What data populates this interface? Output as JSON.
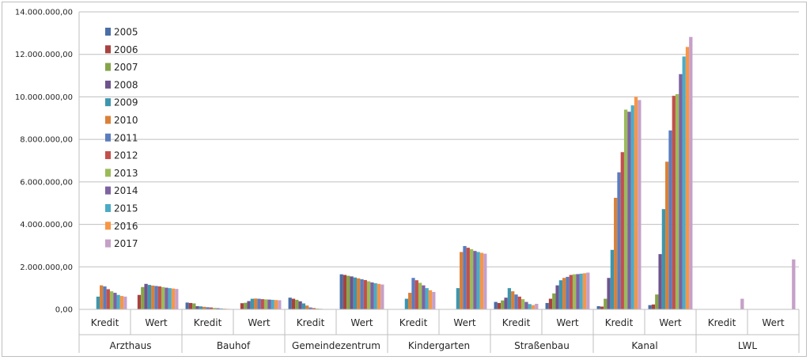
{
  "chart_data": {
    "type": "bar",
    "ylim": [
      0,
      14000000
    ],
    "y_ticks": [
      0,
      2000000,
      4000000,
      6000000,
      8000000,
      10000000,
      12000000,
      14000000
    ],
    "y_tick_labels": [
      "0,00",
      "2.000.000,00",
      "4.000.000,00",
      "6.000.000,00",
      "8.000.000,00",
      "10.000.000,00",
      "12.000.000,00",
      "14.000.000,00"
    ],
    "grid": true,
    "legend_placement": "top-left",
    "groups": [
      {
        "name": "Arzthaus",
        "subs": [
          "Kredit",
          "Wert"
        ]
      },
      {
        "name": "Bauhof",
        "subs": [
          "Kredit",
          "Wert"
        ]
      },
      {
        "name": "Gemeindezentrum",
        "subs": [
          "Kredit",
          "Wert"
        ]
      },
      {
        "name": "Kindergarten",
        "subs": [
          "Kredit",
          "Wert"
        ]
      },
      {
        "name": "Straßenbau",
        "subs": [
          "Kredit",
          "Wert"
        ]
      },
      {
        "name": "Kanal",
        "subs": [
          "Kredit",
          "Wert"
        ]
      },
      {
        "name": "LWL",
        "subs": [
          "Kredit",
          "Wert"
        ]
      }
    ],
    "series": [
      {
        "name": "2005",
        "color": "#4a6ea6",
        "values": [
          0,
          0,
          320000,
          0,
          550000,
          1650000,
          0,
          0,
          350000,
          300000,
          150000,
          200000,
          0,
          0
        ]
      },
      {
        "name": "2006",
        "color": "#a8423f",
        "values": [
          0,
          680000,
          300000,
          290000,
          500000,
          1620000,
          0,
          0,
          300000,
          500000,
          130000,
          230000,
          0,
          0
        ]
      },
      {
        "name": "2007",
        "color": "#86a44a",
        "values": [
          0,
          1050000,
          280000,
          310000,
          450000,
          1580000,
          0,
          0,
          420000,
          750000,
          500000,
          700000,
          0,
          0
        ]
      },
      {
        "name": "2008",
        "color": "#6e548d",
        "values": [
          0,
          1200000,
          150000,
          390000,
          380000,
          1550000,
          0,
          0,
          550000,
          1130000,
          1480000,
          2600000,
          0,
          0
        ]
      },
      {
        "name": "2009",
        "color": "#3d96ae",
        "values": [
          600000,
          1150000,
          140000,
          500000,
          280000,
          1500000,
          500000,
          1000000,
          1000000,
          1370000,
          2800000,
          4720000,
          0,
          0
        ]
      },
      {
        "name": "2010",
        "color": "#da8137",
        "values": [
          1130000,
          1120000,
          120000,
          510000,
          180000,
          1460000,
          780000,
          2700000,
          850000,
          1480000,
          5250000,
          6950000,
          0,
          0
        ]
      },
      {
        "name": "2011",
        "color": "#5b7dbf",
        "values": [
          1080000,
          1100000,
          100000,
          500000,
          90000,
          1420000,
          1480000,
          2980000,
          700000,
          1530000,
          6450000,
          8420000,
          0,
          0
        ]
      },
      {
        "name": "2012",
        "color": "#c2504d",
        "values": [
          950000,
          1080000,
          90000,
          480000,
          60000,
          1380000,
          1370000,
          2900000,
          600000,
          1620000,
          7400000,
          10050000,
          0,
          0
        ]
      },
      {
        "name": "2013",
        "color": "#9bbb59",
        "values": [
          850000,
          1050000,
          70000,
          470000,
          40000,
          1320000,
          1250000,
          2830000,
          480000,
          1650000,
          9400000,
          10130000,
          0,
          0
        ]
      },
      {
        "name": "2014",
        "color": "#7e62a1",
        "values": [
          780000,
          1020000,
          55000,
          460000,
          25000,
          1270000,
          1130000,
          2750000,
          350000,
          1660000,
          9300000,
          11070000,
          0,
          0
        ]
      },
      {
        "name": "2015",
        "color": "#4bacc6",
        "values": [
          680000,
          1000000,
          45000,
          450000,
          15000,
          1230000,
          1000000,
          2700000,
          250000,
          1680000,
          9600000,
          11900000,
          0,
          0
        ]
      },
      {
        "name": "2016",
        "color": "#f79646",
        "values": [
          630000,
          980000,
          35000,
          440000,
          8000,
          1200000,
          900000,
          2660000,
          200000,
          1700000,
          10000000,
          12350000,
          0,
          0
        ]
      },
      {
        "name": "2017",
        "color": "#c6a0c8",
        "values": [
          600000,
          960000,
          25000,
          430000,
          5000,
          1170000,
          820000,
          2620000,
          260000,
          1730000,
          9850000,
          12820000,
          500000,
          2350000
        ]
      }
    ]
  }
}
